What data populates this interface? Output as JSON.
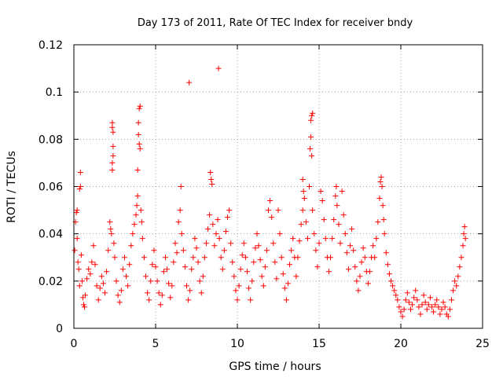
{
  "chart_data": {
    "type": "scatter",
    "title": "Day 173 of 2011, Rate Of TEC Index for receiver bndy",
    "xlabel": "GPS time / hours",
    "ylabel": "ROTI / TECUs",
    "xlim": [
      0,
      25
    ],
    "ylim": [
      0,
      0.12
    ],
    "xticks": [
      0,
      5,
      10,
      15,
      20,
      25
    ],
    "yticks": [
      0,
      0.02,
      0.04,
      0.06,
      0.08,
      0.1,
      0.12
    ],
    "xtick_labels": [
      "0",
      "5",
      "10",
      "15",
      "20",
      "25"
    ],
    "ytick_labels": [
      "0",
      "0.02",
      "0.04",
      "0.06",
      "0.08",
      "0.1",
      "0.12"
    ],
    "grid": true,
    "marker": "+",
    "color": "#ff0000",
    "series": [
      {
        "points": [
          [
            0.05,
            0.033
          ],
          [
            0.1,
            0.045
          ],
          [
            0.15,
            0.049
          ],
          [
            0.2,
            0.05
          ],
          [
            0.2,
            0.038
          ],
          [
            0.25,
            0.028
          ],
          [
            0.3,
            0.025
          ],
          [
            0.35,
            0.018
          ],
          [
            0.35,
            0.059
          ],
          [
            0.4,
            0.066
          ],
          [
            0.4,
            0.06
          ],
          [
            0.45,
            0.031
          ],
          [
            0.5,
            0.02
          ],
          [
            0.55,
            0.013
          ],
          [
            0.6,
            0.01
          ],
          [
            0.65,
            0.009
          ],
          [
            0.7,
            0.014
          ],
          [
            0.8,
            0.021
          ],
          [
            0.9,
            0.025
          ],
          [
            1.0,
            0.023
          ],
          [
            1.1,
            0.028
          ],
          [
            1.2,
            0.035
          ],
          [
            1.3,
            0.027
          ],
          [
            1.4,
            0.018
          ],
          [
            1.5,
            0.012
          ],
          [
            1.6,
            0.017
          ],
          [
            1.7,
            0.022
          ],
          [
            1.8,
            0.019
          ],
          [
            1.9,
            0.015
          ],
          [
            2.0,
            0.024
          ],
          [
            2.1,
            0.033
          ],
          [
            2.2,
            0.045
          ],
          [
            2.25,
            0.042
          ],
          [
            2.3,
            0.04
          ],
          [
            2.35,
            0.087
          ],
          [
            2.35,
            0.085
          ],
          [
            2.4,
            0.083
          ],
          [
            2.4,
            0.077
          ],
          [
            2.35,
            0.07
          ],
          [
            2.35,
            0.067
          ],
          [
            2.4,
            0.073
          ],
          [
            2.45,
            0.036
          ],
          [
            2.5,
            0.03
          ],
          [
            2.6,
            0.02
          ],
          [
            2.7,
            0.014
          ],
          [
            2.8,
            0.011
          ],
          [
            2.9,
            0.016
          ],
          [
            3.0,
            0.025
          ],
          [
            3.1,
            0.03
          ],
          [
            3.2,
            0.022
          ],
          [
            3.3,
            0.018
          ],
          [
            3.4,
            0.027
          ],
          [
            3.5,
            0.035
          ],
          [
            3.6,
            0.04
          ],
          [
            3.7,
            0.044
          ],
          [
            3.8,
            0.048
          ],
          [
            3.85,
            0.052
          ],
          [
            3.9,
            0.056
          ],
          [
            3.9,
            0.067
          ],
          [
            3.95,
            0.082
          ],
          [
            3.95,
            0.087
          ],
          [
            4.0,
            0.093
          ],
          [
            4.05,
            0.094
          ],
          [
            4.0,
            0.078
          ],
          [
            4.05,
            0.076
          ],
          [
            4.1,
            0.05
          ],
          [
            4.15,
            0.045
          ],
          [
            4.2,
            0.038
          ],
          [
            4.3,
            0.03
          ],
          [
            4.4,
            0.022
          ],
          [
            4.5,
            0.015
          ],
          [
            4.6,
            0.012
          ],
          [
            4.7,
            0.02
          ],
          [
            4.8,
            0.027
          ],
          [
            4.9,
            0.033
          ],
          [
            5.0,
            0.026
          ],
          [
            5.1,
            0.02
          ],
          [
            5.2,
            0.015
          ],
          [
            5.3,
            0.01
          ],
          [
            5.4,
            0.014
          ],
          [
            5.5,
            0.024
          ],
          [
            5.6,
            0.03
          ],
          [
            5.7,
            0.025
          ],
          [
            5.8,
            0.019
          ],
          [
            5.9,
            0.013
          ],
          [
            6.0,
            0.018
          ],
          [
            6.1,
            0.028
          ],
          [
            6.2,
            0.036
          ],
          [
            6.3,
            0.032
          ],
          [
            6.4,
            0.045
          ],
          [
            6.5,
            0.05
          ],
          [
            6.55,
            0.06
          ],
          [
            6.6,
            0.04
          ],
          [
            6.7,
            0.033
          ],
          [
            6.8,
            0.026
          ],
          [
            6.9,
            0.018
          ],
          [
            7.0,
            0.012
          ],
          [
            7.05,
            0.104
          ],
          [
            7.1,
            0.016
          ],
          [
            7.2,
            0.025
          ],
          [
            7.3,
            0.03
          ],
          [
            7.4,
            0.038
          ],
          [
            7.5,
            0.034
          ],
          [
            7.6,
            0.028
          ],
          [
            7.7,
            0.02
          ],
          [
            7.8,
            0.015
          ],
          [
            7.9,
            0.022
          ],
          [
            8.0,
            0.03
          ],
          [
            8.1,
            0.036
          ],
          [
            8.2,
            0.042
          ],
          [
            8.3,
            0.048
          ],
          [
            8.35,
            0.066
          ],
          [
            8.4,
            0.063
          ],
          [
            8.45,
            0.061
          ],
          [
            8.5,
            0.044
          ],
          [
            8.6,
            0.035
          ],
          [
            8.7,
            0.04
          ],
          [
            8.8,
            0.046
          ],
          [
            8.85,
            0.11
          ],
          [
            8.9,
            0.038
          ],
          [
            9.0,
            0.03
          ],
          [
            9.1,
            0.025
          ],
          [
            9.2,
            0.033
          ],
          [
            9.3,
            0.041
          ],
          [
            9.4,
            0.047
          ],
          [
            9.5,
            0.05
          ],
          [
            9.6,
            0.036
          ],
          [
            9.7,
            0.028
          ],
          [
            9.8,
            0.022
          ],
          [
            9.9,
            0.016
          ],
          [
            10.0,
            0.012
          ],
          [
            10.1,
            0.018
          ],
          [
            10.2,
            0.025
          ],
          [
            10.3,
            0.031
          ],
          [
            10.4,
            0.036
          ],
          [
            10.5,
            0.03
          ],
          [
            10.6,
            0.024
          ],
          [
            10.7,
            0.017
          ],
          [
            10.8,
            0.012
          ],
          [
            10.9,
            0.02
          ],
          [
            11.0,
            0.028
          ],
          [
            11.1,
            0.034
          ],
          [
            11.2,
            0.04
          ],
          [
            11.3,
            0.035
          ],
          [
            11.4,
            0.029
          ],
          [
            11.5,
            0.022
          ],
          [
            11.6,
            0.018
          ],
          [
            11.7,
            0.026
          ],
          [
            11.8,
            0.033
          ],
          [
            11.9,
            0.05
          ],
          [
            12.0,
            0.054
          ],
          [
            12.1,
            0.047
          ],
          [
            12.2,
            0.036
          ],
          [
            12.3,
            0.028
          ],
          [
            12.4,
            0.021
          ],
          [
            12.5,
            0.05
          ],
          [
            12.6,
            0.04
          ],
          [
            12.7,
            0.03
          ],
          [
            12.8,
            0.023
          ],
          [
            12.9,
            0.017
          ],
          [
            13.0,
            0.012
          ],
          [
            13.1,
            0.019
          ],
          [
            13.2,
            0.027
          ],
          [
            13.3,
            0.033
          ],
          [
            13.4,
            0.038
          ],
          [
            13.5,
            0.03
          ],
          [
            13.6,
            0.022
          ],
          [
            13.7,
            0.03
          ],
          [
            13.8,
            0.037
          ],
          [
            13.9,
            0.044
          ],
          [
            14.0,
            0.05
          ],
          [
            14.05,
            0.058
          ],
          [
            14.0,
            0.063
          ],
          [
            14.1,
            0.055
          ],
          [
            14.2,
            0.045
          ],
          [
            14.3,
            0.038
          ],
          [
            14.4,
            0.06
          ],
          [
            14.45,
            0.076
          ],
          [
            14.5,
            0.081
          ],
          [
            14.5,
            0.088
          ],
          [
            14.55,
            0.09
          ],
          [
            14.6,
            0.091
          ],
          [
            14.55,
            0.073
          ],
          [
            14.6,
            0.05
          ],
          [
            14.7,
            0.04
          ],
          [
            14.8,
            0.033
          ],
          [
            14.9,
            0.026
          ],
          [
            15.0,
            0.036
          ],
          [
            15.1,
            0.058
          ],
          [
            15.2,
            0.054
          ],
          [
            15.3,
            0.046
          ],
          [
            15.4,
            0.038
          ],
          [
            15.5,
            0.03
          ],
          [
            15.6,
            0.024
          ],
          [
            15.7,
            0.03
          ],
          [
            15.8,
            0.038
          ],
          [
            15.9,
            0.046
          ],
          [
            16.0,
            0.056
          ],
          [
            16.05,
            0.06
          ],
          [
            16.1,
            0.052
          ],
          [
            16.2,
            0.044
          ],
          [
            16.3,
            0.036
          ],
          [
            16.4,
            0.058
          ],
          [
            16.5,
            0.048
          ],
          [
            16.6,
            0.04
          ],
          [
            16.7,
            0.032
          ],
          [
            16.8,
            0.025
          ],
          [
            16.9,
            0.035
          ],
          [
            17.0,
            0.042
          ],
          [
            17.1,
            0.033
          ],
          [
            17.2,
            0.026
          ],
          [
            17.3,
            0.02
          ],
          [
            17.4,
            0.016
          ],
          [
            17.5,
            0.022
          ],
          [
            17.6,
            0.028
          ],
          [
            17.7,
            0.034
          ],
          [
            17.8,
            0.03
          ],
          [
            17.9,
            0.024
          ],
          [
            18.0,
            0.019
          ],
          [
            18.1,
            0.024
          ],
          [
            18.2,
            0.03
          ],
          [
            18.3,
            0.035
          ],
          [
            18.4,
            0.03
          ],
          [
            18.5,
            0.038
          ],
          [
            18.6,
            0.045
          ],
          [
            18.7,
            0.055
          ],
          [
            18.75,
            0.062
          ],
          [
            18.8,
            0.064
          ],
          [
            18.85,
            0.06
          ],
          [
            18.9,
            0.052
          ],
          [
            18.95,
            0.046
          ],
          [
            19.0,
            0.04
          ],
          [
            19.1,
            0.032
          ],
          [
            19.2,
            0.027
          ],
          [
            19.3,
            0.023
          ],
          [
            19.4,
            0.02
          ],
          [
            19.5,
            0.018
          ],
          [
            19.6,
            0.016
          ],
          [
            19.7,
            0.014
          ],
          [
            19.8,
            0.012
          ],
          [
            19.9,
            0.009
          ],
          [
            20.0,
            0.007
          ],
          [
            20.1,
            0.005
          ],
          [
            20.2,
            0.008
          ],
          [
            20.3,
            0.012
          ],
          [
            20.4,
            0.015
          ],
          [
            20.5,
            0.011
          ],
          [
            20.6,
            0.008
          ],
          [
            20.7,
            0.01
          ],
          [
            20.8,
            0.013
          ],
          [
            20.9,
            0.016
          ],
          [
            21.0,
            0.012
          ],
          [
            21.1,
            0.009
          ],
          [
            21.2,
            0.006
          ],
          [
            21.3,
            0.01
          ],
          [
            21.4,
            0.014
          ],
          [
            21.5,
            0.011
          ],
          [
            21.6,
            0.008
          ],
          [
            21.7,
            0.01
          ],
          [
            21.8,
            0.013
          ],
          [
            21.9,
            0.009
          ],
          [
            22.0,
            0.007
          ],
          [
            22.1,
            0.01
          ],
          [
            22.2,
            0.012
          ],
          [
            22.3,
            0.009
          ],
          [
            22.4,
            0.006
          ],
          [
            22.5,
            0.008
          ],
          [
            22.6,
            0.011
          ],
          [
            22.7,
            0.009
          ],
          [
            22.8,
            0.006
          ],
          [
            22.9,
            0.005
          ],
          [
            23.0,
            0.008
          ],
          [
            23.1,
            0.012
          ],
          [
            23.2,
            0.016
          ],
          [
            23.3,
            0.02
          ],
          [
            23.4,
            0.018
          ],
          [
            23.5,
            0.022
          ],
          [
            23.6,
            0.026
          ],
          [
            23.7,
            0.03
          ],
          [
            23.8,
            0.035
          ],
          [
            23.85,
            0.04
          ],
          [
            23.9,
            0.043
          ],
          [
            23.95,
            0.038
          ]
        ]
      }
    ]
  }
}
